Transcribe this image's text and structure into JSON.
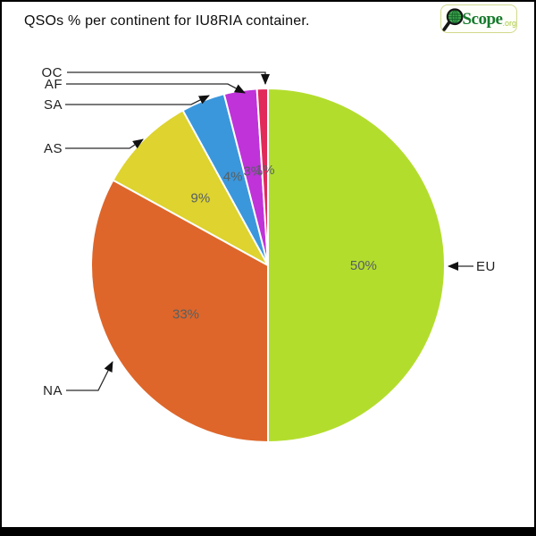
{
  "header": {
    "title": "QSOs % per continent for IU8RIA container."
  },
  "logo": {
    "name": "QScope.org",
    "scope_text": "Scope",
    "org_text": ".org",
    "scope_color": "#167a2c",
    "org_color": "#a7cb3d"
  },
  "chart_data": {
    "type": "pie",
    "title": "QSOs % per continent for IU8RIA container.",
    "categories": [
      "EU",
      "NA",
      "AS",
      "SA",
      "AF",
      "OC"
    ],
    "values": [
      50,
      33,
      9,
      4,
      3,
      1
    ],
    "percent_labels": [
      "50%",
      "33%",
      "9%",
      "4%",
      "3%",
      "1%"
    ],
    "colors": [
      "#b3dd2d",
      "#de662a",
      "#ded32f",
      "#3b97dc",
      "#bf33d9",
      "#e12a5a"
    ],
    "start_angle_deg": 0,
    "direction": "clockwise",
    "slice_border_color": "#ffffff",
    "percent_label_color": "#566063",
    "callout_line_color": "#2a2a2a",
    "legend_position": "callouts"
  }
}
